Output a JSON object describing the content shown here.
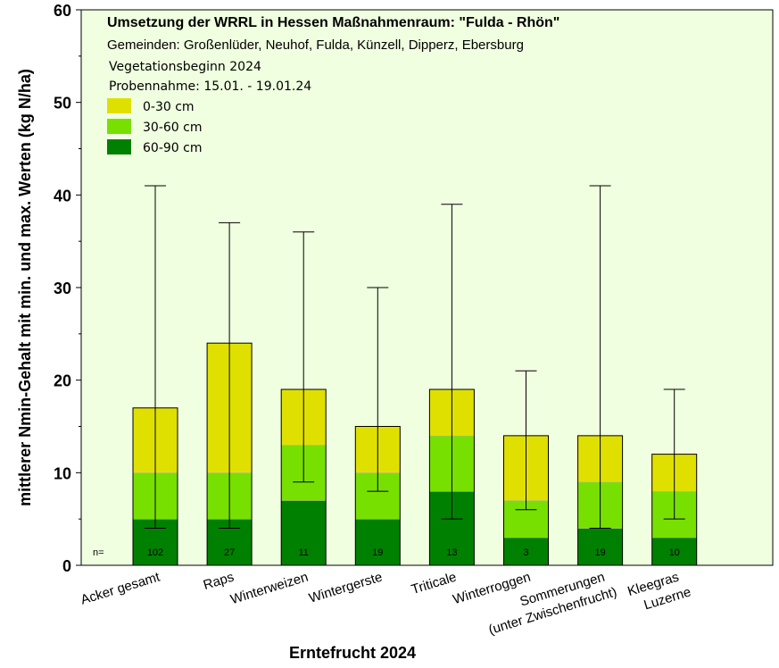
{
  "chart_data": {
    "type": "bar",
    "stacked": true,
    "title": "Umsetzung der WRRL in Hessen Maßnahmenraum: \"Fulda - Rhön\"",
    "subtitle": "Gemeinden: Großenlüder, Neuhof, Fulda, Künzell, Dipperz, Ebersburg",
    "notes": [
      "Vegetationsbeginn 2024",
      "Probennahme: 15.01. - 19.01.24"
    ],
    "xlabel": "Erntefrucht 2024",
    "ylabel": "mittlerer Nmin-Gehalt mit min. und max. Werten (kg N/ha)",
    "ylim": [
      0,
      60
    ],
    "yticks": [
      0,
      10,
      20,
      30,
      40,
      50,
      60
    ],
    "categories": [
      [
        "Acker gesamt"
      ],
      [
        "Raps"
      ],
      [
        "Winterweizen"
      ],
      [
        "Wintergerste"
      ],
      [
        "Triticale"
      ],
      [
        "Winterroggen"
      ],
      [
        "Sommerungen",
        "(unter Zwischenfrucht)"
      ],
      [
        "Kleegras",
        "Luzerne"
      ]
    ],
    "series": [
      {
        "name": "60-90 cm",
        "color": "#008000",
        "values": [
          5,
          5,
          7,
          5,
          8,
          3,
          4,
          3
        ]
      },
      {
        "name": "30-60 cm",
        "color": "#77e000",
        "values": [
          5,
          5,
          6,
          5,
          6,
          4,
          5,
          5
        ]
      },
      {
        "name": "0-30 cm",
        "color": "#e0e000",
        "values": [
          7,
          14,
          6,
          5,
          5,
          7,
          5,
          4
        ]
      }
    ],
    "min": [
      4,
      4,
      9,
      8,
      5,
      6,
      4,
      5
    ],
    "max": [
      41,
      37,
      36,
      30,
      39,
      21,
      41,
      19
    ],
    "n_label": "n=",
    "n": [
      "102",
      "27",
      "11",
      "19",
      "13",
      "3",
      "19",
      "10"
    ],
    "legend_position": "top-left",
    "background_color": "#f0ffe0"
  }
}
